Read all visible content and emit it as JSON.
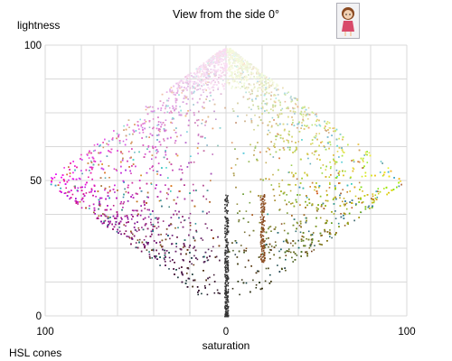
{
  "header": {
    "title": "View from the side 0°"
  },
  "footer": {
    "caption": "HSL cones"
  },
  "chart_data": {
    "type": "scatter",
    "title": "View from the side 0°",
    "xlabel": "saturation",
    "ylabel": "lightness",
    "xlim": [
      -100,
      100
    ],
    "ylim": [
      0,
      100
    ],
    "x_tick_labels": [
      "100",
      "0",
      "100"
    ],
    "y_tick_labels": [
      "0",
      "50",
      "100"
    ],
    "grid": true,
    "legend": "none",
    "series": [
      {
        "shape": "double-cone",
        "apex_bottom": [
          0,
          0
        ],
        "apex_top": [
          0,
          100
        ],
        "equator": [
          [
            -100,
            50
          ],
          [
            100,
            50
          ]
        ],
        "left_side_color": "#d23ad8",
        "right_side_color": "#dcea3a",
        "top_color": "#f4e8f8"
      }
    ],
    "features": [
      {
        "name": "grey axis",
        "x": 0,
        "y_range": [
          0,
          100
        ],
        "color": "#333333"
      },
      {
        "name": "brown streak",
        "x": 20,
        "y_range": [
          20,
          45
        ],
        "color": "#8a4a1e"
      }
    ]
  },
  "icons": {
    "thumbnail": "cartoon-girl-icon"
  }
}
